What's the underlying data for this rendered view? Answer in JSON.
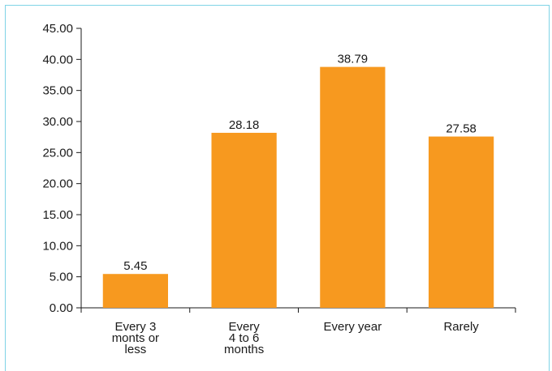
{
  "chart_data": {
    "type": "bar",
    "categories": [
      "Every 3 monts or less",
      "Every 4 to 6 months",
      "Every year",
      "Rarely"
    ],
    "category_lines": [
      [
        "Every 3",
        "monts or",
        "less"
      ],
      [
        "Every",
        "4 to 6",
        "months"
      ],
      [
        "Every year"
      ],
      [
        "Rarely"
      ]
    ],
    "values": [
      5.45,
      28.18,
      38.79,
      27.58
    ],
    "value_labels": [
      "5.45",
      "28.18",
      "38.79",
      "27.58"
    ],
    "ylim": [
      0,
      45
    ],
    "yticks": [
      "0.00",
      "5.00",
      "10.00",
      "15.00",
      "20.00",
      "25.00",
      "30.00",
      "35.00",
      "40.00",
      "45.00"
    ],
    "title": "",
    "xlabel": "",
    "ylabel": "",
    "grid": false,
    "bar_color": "#f7991f"
  }
}
